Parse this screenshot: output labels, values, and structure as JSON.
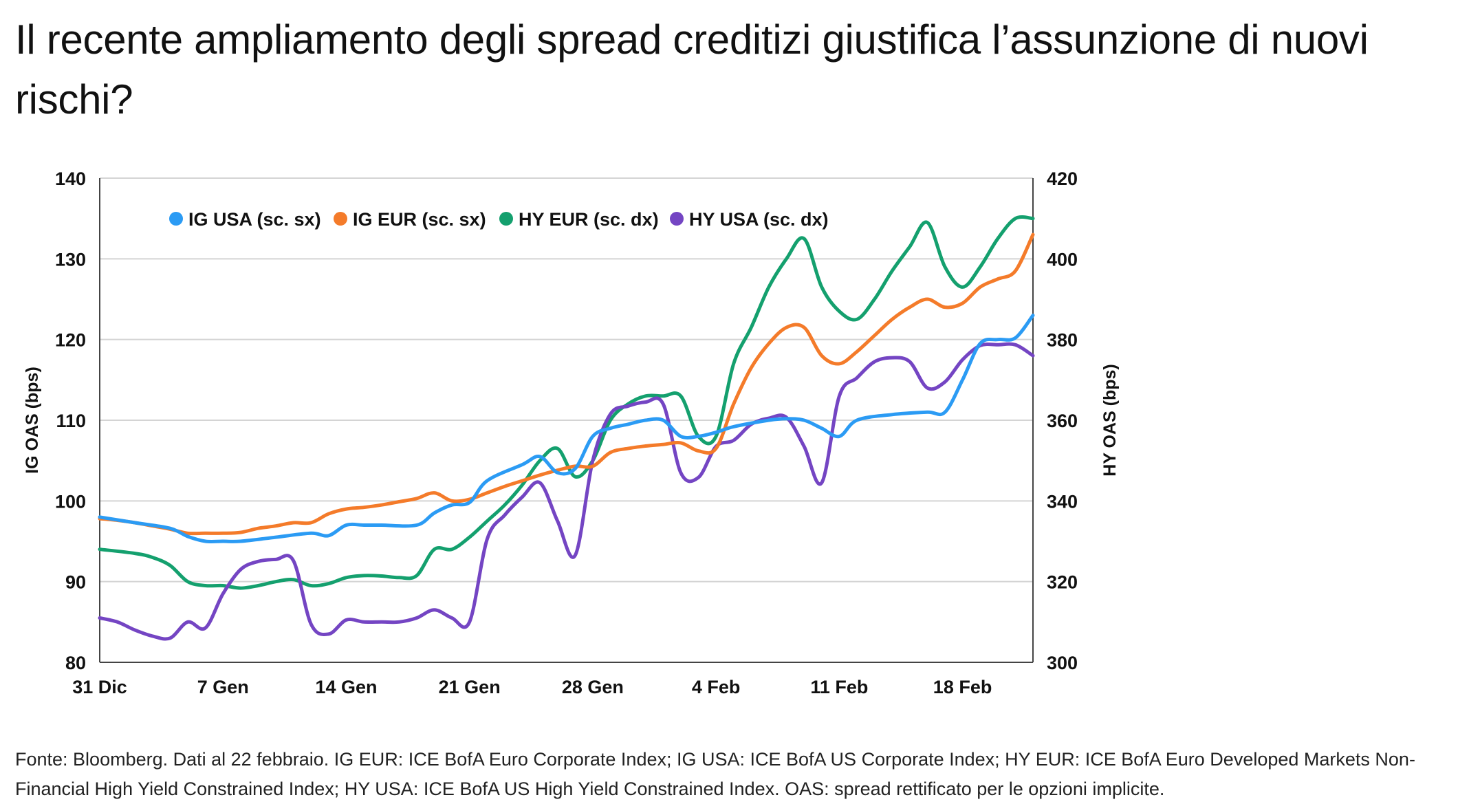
{
  "title": "Il recente ampliamento degli spread creditizi giustifica l’assunzione di nuovi rischi?",
  "source": "Fonte: Bloomberg. Dati al 22 febbraio. IG EUR: ICE BofA Euro Corporate Index; IG USA: ICE BofA US Corporate Index; HY EUR: ICE BofA Euro Developed Markets Non-Financial High Yield Constrained Index; HY USA: ICE BofA US High Yield Constrained Index. OAS: spread rettificato per le opzioni implicite.",
  "chart_data": {
    "type": "line",
    "xlabel": "",
    "ylabel_left": "IG OAS (bps)",
    "ylabel_right": "HY OAS (bps)",
    "ylim_left": [
      80,
      140
    ],
    "ylim_right": [
      300,
      420
    ],
    "yticks_left": [
      "80",
      "90",
      "100",
      "110",
      "120",
      "130",
      "140"
    ],
    "yticks_right": [
      "300",
      "320",
      "340",
      "360",
      "380",
      "400",
      "420"
    ],
    "xlim_days": [
      0,
      53
    ],
    "xticks": [
      {
        "label": "31 Dic",
        "day": 0
      },
      {
        "label": "7 Gen",
        "day": 7
      },
      {
        "label": "14 Gen",
        "day": 14
      },
      {
        "label": "21 Gen",
        "day": 21
      },
      {
        "label": "28 Gen",
        "day": 28
      },
      {
        "label": "4 Feb",
        "day": 35
      },
      {
        "label": "11 Feb",
        "day": 42
      },
      {
        "label": "18 Feb",
        "day": 49
      }
    ],
    "grid": "horizontal",
    "legend": "top-left",
    "series": [
      {
        "name": "IG USA (sc. sx)",
        "axis": "left",
        "color": "#2b9bf4",
        "x": [
          0,
          2,
          4,
          5,
          6,
          7,
          8,
          10,
          12,
          13,
          14,
          15,
          16,
          18,
          19,
          20,
          21,
          22,
          24,
          25,
          26,
          27,
          28,
          29,
          30,
          31,
          32,
          33,
          34,
          35,
          36,
          38,
          39,
          40,
          41,
          42,
          43,
          45,
          47,
          48,
          49,
          50,
          51,
          52,
          53
        ],
        "y": [
          98,
          97.3,
          96.6,
          95.6,
          95,
          95,
          95,
          95.5,
          96,
          95.7,
          97,
          97,
          97,
          97,
          98.5,
          99.5,
          99.8,
          102.5,
          104.5,
          105.5,
          103.5,
          104,
          108,
          109,
          109.5,
          110,
          110,
          108,
          108,
          108.5,
          109.2,
          110,
          110.2,
          110,
          109,
          108,
          110,
          110.7,
          111,
          111,
          115,
          119.5,
          120,
          120.2,
          123
        ]
      },
      {
        "name": "IG EUR (sc. sx)",
        "axis": "left",
        "color": "#f47b2a",
        "x": [
          0,
          1,
          2,
          3,
          4,
          5,
          6,
          7,
          8,
          9,
          10,
          11,
          12,
          13,
          14,
          15,
          16,
          17,
          18,
          19,
          20,
          21,
          22,
          23,
          24,
          25,
          26,
          27,
          28,
          29,
          30,
          31,
          32,
          33,
          34,
          35,
          36,
          37,
          38,
          39,
          40,
          41,
          42,
          43,
          44,
          45,
          46,
          47,
          48,
          49,
          50,
          51,
          52,
          53
        ],
        "y": [
          97.8,
          97.6,
          97.3,
          96.9,
          96.5,
          96,
          96,
          96,
          96.1,
          96.6,
          96.9,
          97.3,
          97.3,
          98.4,
          99,
          99.2,
          99.5,
          99.9,
          100.3,
          101,
          100,
          100.2,
          101,
          101.8,
          102.5,
          103.2,
          103.8,
          104.3,
          104.3,
          106,
          106.5,
          106.8,
          107,
          107.2,
          106.2,
          106.5,
          112,
          116.5,
          119.5,
          121.5,
          121.5,
          118,
          117,
          118.5,
          120.5,
          122.5,
          124,
          125,
          124,
          124.5,
          126.5,
          127.5,
          128.5,
          133
        ]
      },
      {
        "name": "HY EUR (sc. dx)",
        "axis": "right",
        "color": "#14a06e",
        "x": [
          0,
          2,
          3,
          4,
          5,
          6,
          7,
          8,
          9,
          10,
          11,
          12,
          13,
          14,
          15,
          16,
          17,
          18,
          19,
          20,
          21,
          22,
          23,
          24,
          25,
          26,
          27,
          28,
          29,
          30,
          31,
          32,
          33,
          34,
          35,
          36,
          37,
          38,
          39,
          40,
          41,
          42,
          43,
          44,
          45,
          46,
          47,
          48,
          49,
          50,
          51,
          52,
          53
        ],
        "y": [
          328,
          327,
          326,
          324,
          320,
          319,
          319,
          318.4,
          319,
          320,
          320.5,
          319,
          319.5,
          321,
          321.5,
          321.4,
          321,
          321.5,
          328,
          328,
          331,
          335,
          339,
          344,
          350,
          353,
          346,
          350,
          360,
          364,
          366,
          366,
          366,
          356,
          356,
          374,
          383,
          393,
          400,
          405,
          393,
          387,
          385,
          390,
          397,
          403,
          409,
          398,
          393,
          398,
          405,
          410,
          410
        ]
      },
      {
        "name": "HY USA (sc. dx)",
        "axis": "right",
        "color": "#7445c3",
        "x": [
          0,
          1,
          2,
          3,
          4,
          5,
          6,
          7,
          8,
          9,
          10,
          11,
          12,
          13,
          14,
          15,
          16,
          17,
          18,
          19,
          20,
          21,
          22,
          23,
          24,
          25,
          26,
          27,
          28,
          29,
          30,
          31,
          32,
          33,
          34,
          35,
          36,
          37,
          38,
          39,
          40,
          41,
          42,
          43,
          44,
          45,
          46,
          47,
          48,
          49,
          50,
          51,
          52,
          53
        ],
        "y": [
          311,
          310,
          308,
          306.5,
          306,
          310,
          308.5,
          317,
          323,
          325,
          325.5,
          325.2,
          309.5,
          307,
          310.5,
          310,
          310,
          310,
          311,
          313,
          311,
          310,
          330.5,
          336.5,
          341,
          344.5,
          335,
          326.5,
          350,
          361.5,
          363.5,
          364.5,
          364,
          347,
          345.8,
          353.5,
          355,
          359,
          360.5,
          360.7,
          353.5,
          344.5,
          366,
          370.5,
          374.5,
          375.5,
          374.5,
          368,
          369.5,
          375,
          378.5,
          378.7,
          378.7,
          376
        ]
      }
    ]
  }
}
